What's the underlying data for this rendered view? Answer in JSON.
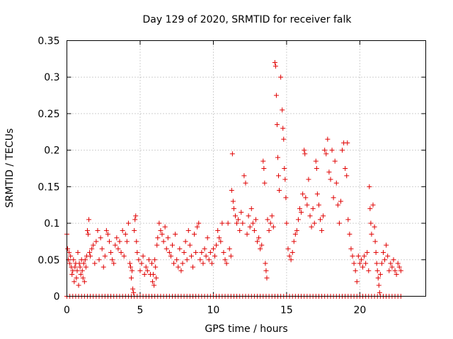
{
  "chart_data": {
    "type": "scatter",
    "title": "Day 129 of 2020, SRMTID for receiver falk",
    "xlabel": "GPS time / hours",
    "ylabel": "SRMTID / TECUs",
    "xlim": [
      0,
      24.5
    ],
    "ylim": [
      0,
      0.35
    ],
    "xticks": [
      0,
      5,
      10,
      15,
      20
    ],
    "xtick_labels": [
      "0",
      "5",
      "10",
      "15",
      "20"
    ],
    "yticks": [
      0,
      0.05,
      0.1,
      0.15,
      0.2,
      0.25,
      0.3,
      0.35
    ],
    "ytick_labels": [
      "0",
      "0.05",
      "0.1",
      "0.15",
      "0.2",
      "0.25",
      "0.3",
      "0.35"
    ],
    "grid": true,
    "marker": "+",
    "color": "#e00000",
    "series": [
      {
        "name": "SRMTID",
        "points": [
          [
            0.0,
            0.085
          ],
          [
            0.05,
            0.065
          ],
          [
            0.1,
            0.05
          ],
          [
            0.15,
            0.06
          ],
          [
            0.2,
            0.045
          ],
          [
            0.25,
            0.055
          ],
          [
            0.3,
            0.04
          ],
          [
            0.35,
            0.03
          ],
          [
            0.4,
            0.035
          ],
          [
            0.45,
            0.05
          ],
          [
            0.5,
            0.02
          ],
          [
            0.55,
            0.04
          ],
          [
            0.6,
            0.045
          ],
          [
            0.65,
            0.025
          ],
          [
            0.7,
            0.035
          ],
          [
            0.75,
            0.06
          ],
          [
            0.8,
            0.015
          ],
          [
            0.85,
            0.045
          ],
          [
            0.9,
            0.04
          ],
          [
            0.95,
            0.03
          ],
          [
            1.0,
            0.05
          ],
          [
            1.05,
            0.035
          ],
          [
            1.1,
            0.025
          ],
          [
            1.15,
            0.045
          ],
          [
            1.2,
            0.02
          ],
          [
            1.25,
            0.05
          ],
          [
            1.3,
            0.04
          ],
          [
            1.35,
            0.055
          ],
          [
            1.4,
            0.09
          ],
          [
            1.45,
            0.085
          ],
          [
            1.5,
            0.105
          ],
          [
            1.55,
            0.06
          ],
          [
            1.6,
            0.055
          ],
          [
            1.7,
            0.065
          ],
          [
            1.8,
            0.07
          ],
          [
            1.9,
            0.045
          ],
          [
            2.0,
            0.075
          ],
          [
            2.1,
            0.09
          ],
          [
            2.2,
            0.05
          ],
          [
            2.3,
            0.08
          ],
          [
            2.4,
            0.065
          ],
          [
            2.5,
            0.04
          ],
          [
            2.6,
            0.055
          ],
          [
            2.7,
            0.09
          ],
          [
            2.8,
            0.085
          ],
          [
            2.9,
            0.075
          ],
          [
            3.0,
            0.06
          ],
          [
            3.1,
            0.05
          ],
          [
            3.2,
            0.045
          ],
          [
            3.3,
            0.07
          ],
          [
            3.4,
            0.08
          ],
          [
            3.5,
            0.065
          ],
          [
            3.6,
            0.075
          ],
          [
            3.7,
            0.06
          ],
          [
            3.8,
            0.09
          ],
          [
            3.9,
            0.055
          ],
          [
            4.0,
            0.085
          ],
          [
            4.1,
            0.075
          ],
          [
            4.2,
            0.1
          ],
          [
            4.3,
            0.045
          ],
          [
            4.35,
            0.04
          ],
          [
            4.4,
            0.025
          ],
          [
            4.45,
            0.035
          ],
          [
            4.5,
            0.01
          ],
          [
            4.55,
            0.005
          ],
          [
            4.6,
            0.09
          ],
          [
            4.65,
            0.105
          ],
          [
            4.7,
            0.11
          ],
          [
            4.75,
            0.075
          ],
          [
            4.8,
            0.06
          ],
          [
            4.9,
            0.05
          ],
          [
            5.0,
            0.035
          ],
          [
            5.1,
            0.045
          ],
          [
            5.2,
            0.055
          ],
          [
            5.3,
            0.03
          ],
          [
            5.4,
            0.04
          ],
          [
            5.5,
            0.035
          ],
          [
            5.6,
            0.05
          ],
          [
            5.7,
            0.03
          ],
          [
            5.8,
            0.045
          ],
          [
            5.85,
            0.02
          ],
          [
            5.9,
            0.03
          ],
          [
            5.95,
            0.015
          ],
          [
            6.0,
            0.05
          ],
          [
            6.05,
            0.04
          ],
          [
            6.1,
            0.025
          ],
          [
            6.15,
            0.07
          ],
          [
            6.2,
            0.08
          ],
          [
            6.3,
            0.1
          ],
          [
            6.4,
            0.09
          ],
          [
            6.5,
            0.085
          ],
          [
            6.6,
            0.075
          ],
          [
            6.7,
            0.095
          ],
          [
            6.8,
            0.065
          ],
          [
            6.9,
            0.08
          ],
          [
            7.0,
            0.06
          ],
          [
            7.1,
            0.055
          ],
          [
            7.2,
            0.07
          ],
          [
            7.3,
            0.045
          ],
          [
            7.4,
            0.085
          ],
          [
            7.5,
            0.05
          ],
          [
            7.6,
            0.04
          ],
          [
            7.7,
            0.065
          ],
          [
            7.8,
            0.035
          ],
          [
            7.9,
            0.045
          ],
          [
            8.0,
            0.06
          ],
          [
            8.1,
            0.075
          ],
          [
            8.2,
            0.05
          ],
          [
            8.3,
            0.09
          ],
          [
            8.4,
            0.07
          ],
          [
            8.5,
            0.055
          ],
          [
            8.6,
            0.04
          ],
          [
            8.7,
            0.085
          ],
          [
            8.8,
            0.06
          ],
          [
            8.9,
            0.095
          ],
          [
            9.0,
            0.1
          ],
          [
            9.1,
            0.05
          ],
          [
            9.2,
            0.06
          ],
          [
            9.3,
            0.045
          ],
          [
            9.4,
            0.065
          ],
          [
            9.5,
            0.055
          ],
          [
            9.6,
            0.08
          ],
          [
            9.7,
            0.05
          ],
          [
            9.8,
            0.06
          ],
          [
            9.9,
            0.045
          ],
          [
            10.0,
            0.065
          ],
          [
            10.1,
            0.055
          ],
          [
            10.2,
            0.07
          ],
          [
            10.3,
            0.09
          ],
          [
            10.4,
            0.08
          ],
          [
            10.5,
            0.075
          ],
          [
            10.6,
            0.1
          ],
          [
            10.7,
            0.06
          ],
          [
            10.8,
            0.05
          ],
          [
            10.9,
            0.045
          ],
          [
            11.0,
            0.1
          ],
          [
            11.1,
            0.065
          ],
          [
            11.2,
            0.055
          ],
          [
            11.25,
            0.145
          ],
          [
            11.3,
            0.195
          ],
          [
            11.35,
            0.13
          ],
          [
            11.4,
            0.12
          ],
          [
            11.5,
            0.11
          ],
          [
            11.6,
            0.1
          ],
          [
            11.7,
            0.105
          ],
          [
            11.8,
            0.09
          ],
          [
            11.9,
            0.115
          ],
          [
            12.0,
            0.1
          ],
          [
            12.1,
            0.165
          ],
          [
            12.2,
            0.155
          ],
          [
            12.3,
            0.085
          ],
          [
            12.4,
            0.11
          ],
          [
            12.5,
            0.095
          ],
          [
            12.6,
            0.12
          ],
          [
            12.7,
            0.1
          ],
          [
            12.8,
            0.09
          ],
          [
            12.9,
            0.105
          ],
          [
            13.0,
            0.075
          ],
          [
            13.1,
            0.08
          ],
          [
            13.2,
            0.065
          ],
          [
            13.3,
            0.07
          ],
          [
            13.4,
            0.185
          ],
          [
            13.45,
            0.175
          ],
          [
            13.5,
            0.155
          ],
          [
            13.55,
            0.045
          ],
          [
            13.6,
            0.035
          ],
          [
            13.65,
            0.025
          ],
          [
            13.7,
            0.105
          ],
          [
            13.8,
            0.09
          ],
          [
            13.9,
            0.1
          ],
          [
            14.0,
            0.11
          ],
          [
            14.1,
            0.095
          ],
          [
            14.2,
            0.32
          ],
          [
            14.25,
            0.315
          ],
          [
            14.3,
            0.275
          ],
          [
            14.35,
            0.235
          ],
          [
            14.4,
            0.19
          ],
          [
            14.45,
            0.165
          ],
          [
            14.5,
            0.145
          ],
          [
            14.6,
            0.3
          ],
          [
            14.7,
            0.255
          ],
          [
            14.75,
            0.23
          ],
          [
            14.8,
            0.215
          ],
          [
            14.85,
            0.175
          ],
          [
            14.9,
            0.16
          ],
          [
            14.95,
            0.135
          ],
          [
            15.0,
            0.1
          ],
          [
            15.1,
            0.065
          ],
          [
            15.2,
            0.055
          ],
          [
            15.3,
            0.05
          ],
          [
            15.4,
            0.06
          ],
          [
            15.5,
            0.075
          ],
          [
            15.6,
            0.085
          ],
          [
            15.7,
            0.09
          ],
          [
            15.8,
            0.105
          ],
          [
            15.9,
            0.12
          ],
          [
            16.0,
            0.115
          ],
          [
            16.1,
            0.14
          ],
          [
            16.2,
            0.2
          ],
          [
            16.25,
            0.195
          ],
          [
            16.3,
            0.135
          ],
          [
            16.4,
            0.125
          ],
          [
            16.5,
            0.16
          ],
          [
            16.6,
            0.11
          ],
          [
            16.7,
            0.095
          ],
          [
            16.8,
            0.12
          ],
          [
            16.9,
            0.1
          ],
          [
            17.0,
            0.185
          ],
          [
            17.05,
            0.175
          ],
          [
            17.1,
            0.14
          ],
          [
            17.2,
            0.125
          ],
          [
            17.3,
            0.105
          ],
          [
            17.4,
            0.09
          ],
          [
            17.5,
            0.11
          ],
          [
            17.6,
            0.2
          ],
          [
            17.7,
            0.195
          ],
          [
            17.8,
            0.215
          ],
          [
            17.9,
            0.17
          ],
          [
            18.0,
            0.16
          ],
          [
            18.1,
            0.2
          ],
          [
            18.2,
            0.135
          ],
          [
            18.3,
            0.185
          ],
          [
            18.4,
            0.155
          ],
          [
            18.5,
            0.125
          ],
          [
            18.6,
            0.1
          ],
          [
            18.7,
            0.13
          ],
          [
            18.8,
            0.2
          ],
          [
            18.9,
            0.21
          ],
          [
            19.0,
            0.175
          ],
          [
            19.1,
            0.165
          ],
          [
            19.15,
            0.21
          ],
          [
            19.2,
            0.105
          ],
          [
            19.3,
            0.085
          ],
          [
            19.4,
            0.065
          ],
          [
            19.5,
            0.055
          ],
          [
            19.6,
            0.045
          ],
          [
            19.7,
            0.035
          ],
          [
            19.8,
            0.02
          ],
          [
            19.9,
            0.055
          ],
          [
            20.0,
            0.045
          ],
          [
            20.1,
            0.05
          ],
          [
            20.2,
            0.04
          ],
          [
            20.3,
            0.055
          ],
          [
            20.4,
            0.045
          ],
          [
            20.5,
            0.06
          ],
          [
            20.6,
            0.035
          ],
          [
            20.65,
            0.15
          ],
          [
            20.7,
            0.12
          ],
          [
            20.75,
            0.1
          ],
          [
            20.8,
            0.085
          ],
          [
            20.9,
            0.125
          ],
          [
            21.0,
            0.095
          ],
          [
            21.05,
            0.075
          ],
          [
            21.1,
            0.06
          ],
          [
            21.15,
            0.045
          ],
          [
            21.2,
            0.035
          ],
          [
            21.25,
            0.025
          ],
          [
            21.3,
            0.015
          ],
          [
            21.35,
            0.005
          ],
          [
            21.4,
            0.03
          ],
          [
            21.5,
            0.045
          ],
          [
            21.6,
            0.06
          ],
          [
            21.7,
            0.05
          ],
          [
            21.8,
            0.07
          ],
          [
            21.9,
            0.055
          ],
          [
            22.0,
            0.035
          ],
          [
            22.1,
            0.045
          ],
          [
            22.2,
            0.04
          ],
          [
            22.3,
            0.05
          ],
          [
            22.4,
            0.035
          ],
          [
            22.5,
            0.03
          ],
          [
            22.6,
            0.045
          ],
          [
            22.7,
            0.04
          ],
          [
            22.8,
            0.035
          ]
        ]
      },
      {
        "name": "zero baseline",
        "x_start": 0,
        "x_end": 22.9,
        "x_step": 0.2,
        "y": 0
      }
    ]
  }
}
